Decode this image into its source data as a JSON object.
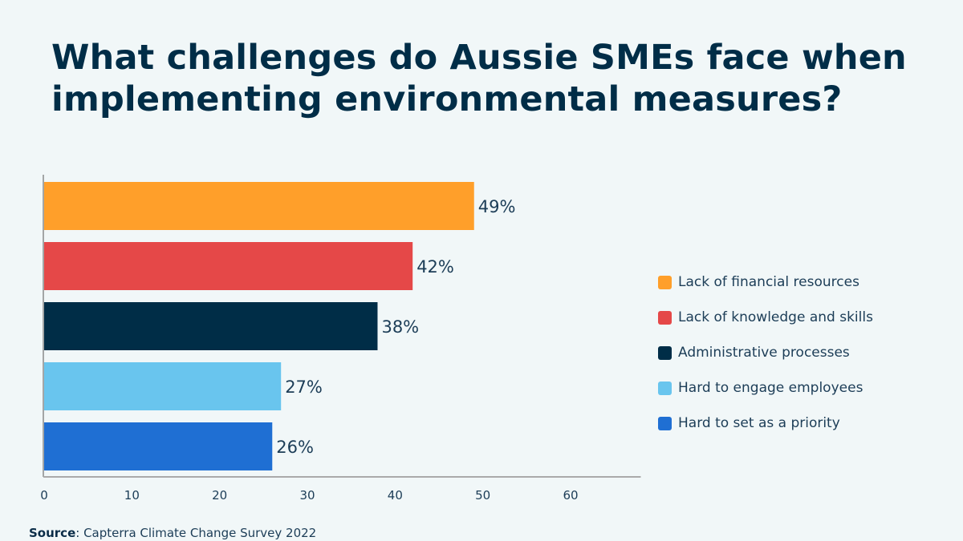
{
  "title": "What challenges do Aussie SMEs face when implementing environmental measures?",
  "source_label": "Source",
  "source_text": ": Capterra Climate Change Survey 2022",
  "chart_data": {
    "type": "bar",
    "orientation": "horizontal",
    "title": "What challenges do Aussie SMEs face when implementing environmental measures?",
    "categories": [
      "Lack of financial resources",
      "Lack of knowledge and skills",
      "Administrative processes",
      "Hard to engage employees",
      "Hard to set as a priority"
    ],
    "values": [
      49,
      42,
      38,
      27,
      26
    ],
    "labels": [
      "49%",
      "42%",
      "38%",
      "27%",
      "26%"
    ],
    "colors": [
      "#ff9f2a",
      "#e54848",
      "#002d47",
      "#69c5ee",
      "#1f6fd3"
    ],
    "xticks": [
      0,
      10,
      20,
      30,
      40,
      50,
      60
    ],
    "xlim": [
      0,
      68
    ],
    "xlabel": "",
    "ylabel": "",
    "grid": false,
    "legend_position": "right"
  }
}
